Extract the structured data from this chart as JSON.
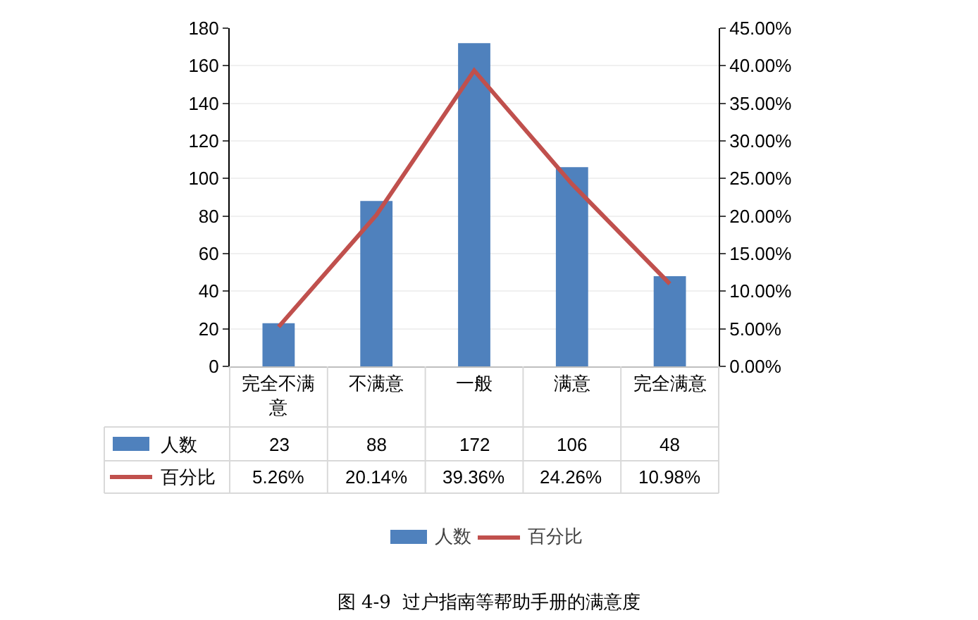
{
  "chart_data": {
    "type": "bar",
    "title": "图 4-9  过户指南等帮助手册的满意度",
    "categories": [
      "完全不满意",
      "不满意",
      "一般",
      "满意",
      "完全满意"
    ],
    "series": [
      {
        "name": "人数",
        "color": "#4f81bd",
        "values": [
          23,
          88,
          172,
          106,
          48
        ],
        "value_labels": [
          "23",
          "88",
          "172",
          "106",
          "48"
        ]
      },
      {
        "name": "百分比",
        "type": "line",
        "axis": "y2",
        "color": "#c0504d",
        "values": [
          5.26,
          20.14,
          39.36,
          24.26,
          10.98
        ],
        "value_labels": [
          "5.26%",
          "20.14%",
          "39.36%",
          "24.26%",
          "10.98%"
        ]
      }
    ],
    "ylim": [
      0,
      180
    ],
    "yticks": [
      0,
      20,
      40,
      60,
      80,
      100,
      120,
      140,
      160,
      180
    ],
    "y2lim": [
      0,
      45
    ],
    "y2ticks": [
      {
        "value": 0,
        "label": "0.00%"
      },
      {
        "value": 5,
        "label": "5.00%"
      },
      {
        "value": 10,
        "label": "10.00%"
      },
      {
        "value": 15,
        "label": "15.00%"
      },
      {
        "value": 20,
        "label": "20.00%"
      },
      {
        "value": 25,
        "label": "25.00%"
      },
      {
        "value": 30,
        "label": "30.00%"
      },
      {
        "value": 35,
        "label": "35.00%"
      },
      {
        "value": 40,
        "label": "40.00%"
      },
      {
        "value": 45,
        "label": "45.00%"
      }
    ],
    "grid": "y",
    "legend": "bottom"
  }
}
